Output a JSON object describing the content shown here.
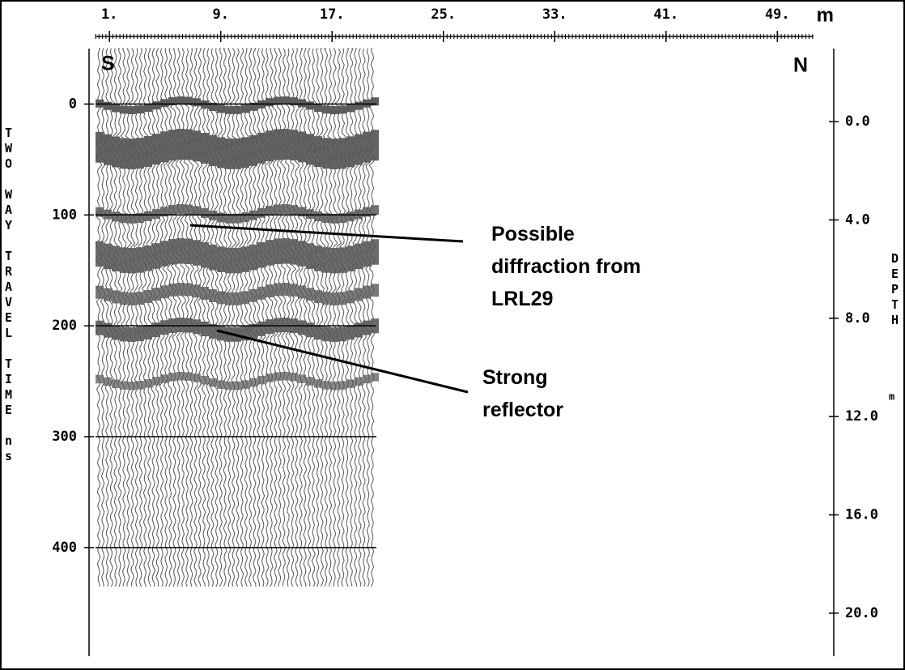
{
  "chart_data": {
    "type": "radargram",
    "x_unit": "m",
    "ylabel": "TWO WAY TRAVEL TIME ns",
    "y2label": "DEPTH",
    "y2unit": "m",
    "annotations": [
      "S",
      "N",
      "Possible",
      "diffraction from",
      "LRL29",
      "Strong",
      "reflector"
    ],
    "xlim": [
      0,
      51.6
    ],
    "xticks": [
      {
        "value": 1,
        "label": "1."
      },
      {
        "value": 9,
        "label": "9."
      },
      {
        "value": 17,
        "label": "17."
      },
      {
        "value": 25,
        "label": "25."
      },
      {
        "value": 33,
        "label": "33."
      },
      {
        "value": 41,
        "label": "41."
      },
      {
        "value": 49,
        "label": "49."
      }
    ],
    "ylim": [
      -50,
      498
    ],
    "yticks": [
      0,
      100,
      200,
      300,
      400
    ],
    "y2lim": [
      -2.97,
      21.75
    ],
    "y2ticks": [
      {
        "value": 0,
        "label": "0.0"
      },
      {
        "value": 4,
        "label": "4.0"
      },
      {
        "value": 8,
        "label": "8.0"
      },
      {
        "value": 12,
        "label": "12.0"
      },
      {
        "value": 16,
        "label": "16.0"
      },
      {
        "value": 20,
        "label": "20.0"
      }
    ],
    "grid": true
  }
}
